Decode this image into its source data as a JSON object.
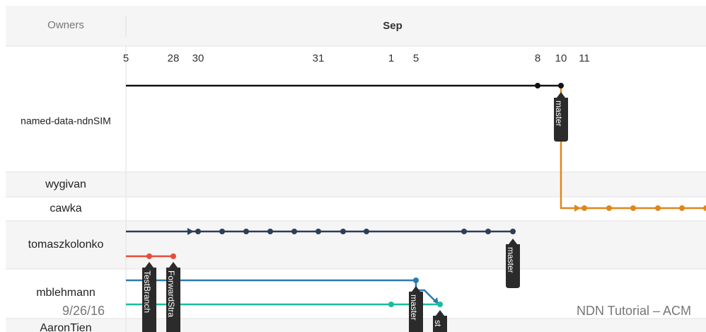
{
  "header": {
    "owners_label": "Owners",
    "month": "Sep"
  },
  "dates": [
    "5",
    "28",
    "30",
    "31",
    "1",
    "5",
    "8",
    "10",
    "11"
  ],
  "owners": [
    "named-data-ndnSIM",
    "wygivan",
    "cawka",
    "tomaszkolonko",
    "mblehmann",
    "AaronTien"
  ],
  "branch_labels": [
    "master",
    "master",
    "TestBranch",
    "ForwardStra",
    "master",
    "st"
  ],
  "footer": {
    "date": "9/26/16",
    "title": "NDN Tutorial – ACM"
  }
}
